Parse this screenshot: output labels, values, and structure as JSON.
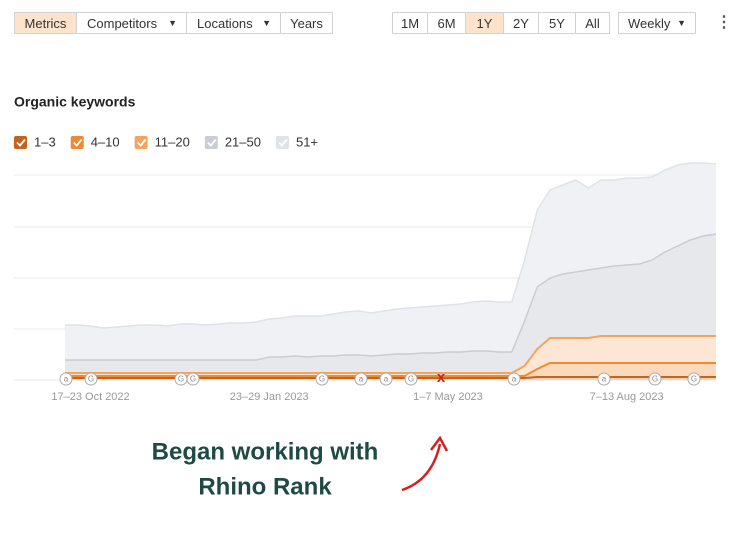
{
  "toolbar": {
    "tabs": [
      "Metrics",
      "Competitors",
      "Locations",
      "Years"
    ],
    "active_tab": 0,
    "ranges": [
      "1M",
      "6M",
      "1Y",
      "2Y",
      "5Y",
      "All"
    ],
    "active_range": 2,
    "interval": "Weekly"
  },
  "chart_data": {
    "type": "stacked-area",
    "title": "Organic keywords",
    "categories": [
      null,
      null,
      "17–23 Oct 2022",
      null,
      null,
      null,
      null,
      null,
      null,
      null,
      null,
      null,
      null,
      null,
      null,
      null,
      "23–29 Jan 2023",
      null,
      null,
      null,
      null,
      null,
      null,
      null,
      null,
      null,
      null,
      null,
      null,
      null,
      "1–7 May 2023",
      null,
      null,
      null,
      null,
      null,
      null,
      null,
      null,
      null,
      null,
      null,
      null,
      null,
      "7–13 Aug 2023",
      null,
      null,
      null,
      null,
      null,
      null,
      null
    ],
    "ylim": [
      0,
      250
    ],
    "series": [
      {
        "name": "1–3",
        "color": "#c5641f",
        "values": [
          2,
          2,
          2,
          2,
          2,
          2,
          2,
          2,
          2,
          2,
          2,
          2,
          2,
          2,
          2,
          2,
          2,
          2,
          2,
          2,
          2,
          2,
          2,
          2,
          2,
          2,
          2,
          2,
          2,
          2,
          2,
          2,
          2,
          2,
          2,
          2,
          2,
          3,
          3,
          3,
          3,
          3,
          3,
          3,
          3,
          3,
          3,
          3,
          3,
          3,
          3,
          3
        ]
      },
      {
        "name": "4–10",
        "color": "#f08a2c",
        "values": [
          2,
          2,
          2,
          2,
          2,
          2,
          2,
          2,
          2,
          2,
          2,
          2,
          2,
          2,
          2,
          2,
          2,
          2,
          2,
          2,
          2,
          2,
          2,
          2,
          2,
          2,
          2,
          2,
          2,
          2,
          2,
          2,
          2,
          2,
          2,
          2,
          2,
          8,
          14,
          14,
          14,
          14,
          14,
          14,
          14,
          14,
          14,
          14,
          14,
          14,
          14,
          14
        ]
      },
      {
        "name": "11–20",
        "color": "#f6a35c",
        "values": [
          3,
          3,
          3,
          3,
          3,
          3,
          3,
          3,
          3,
          3,
          3,
          3,
          3,
          3,
          3,
          3,
          3,
          3,
          3,
          3,
          3,
          3,
          3,
          3,
          3,
          3,
          3,
          3,
          3,
          3,
          3,
          3,
          3,
          3,
          3,
          3,
          10,
          20,
          25,
          25,
          25,
          25,
          27,
          27,
          27,
          27,
          27,
          27,
          27,
          27,
          27,
          27
        ]
      },
      {
        "name": "21–50",
        "color": "#c9cdd4",
        "values": [
          13,
          13,
          13,
          13,
          13,
          13,
          13,
          13,
          13,
          13,
          13,
          13,
          13,
          13,
          13,
          13,
          16,
          16,
          17,
          16,
          17,
          17,
          18,
          18,
          17,
          18,
          19,
          19,
          20,
          20,
          21,
          21,
          22,
          22,
          21,
          21,
          45,
          62,
          60,
          64,
          66,
          68,
          68,
          70,
          71,
          72,
          76,
          84,
          90,
          96,
          100,
          102
        ]
      },
      {
        "name": "51+",
        "color": "#dfe2e7",
        "values": [
          35,
          35,
          34,
          32,
          33,
          34,
          35,
          35,
          34,
          36,
          36,
          35,
          36,
          37,
          37,
          38,
          38,
          39,
          40,
          41,
          40,
          42,
          43,
          44,
          43,
          44,
          45,
          46,
          46,
          47,
          47,
          48,
          49,
          50,
          50,
          50,
          61,
          77,
          88,
          89,
          92,
          82,
          88,
          86,
          87,
          86,
          83,
          82,
          81,
          77,
          73,
          70
        ]
      }
    ],
    "markers": [
      "a",
      "G",
      "G",
      "G",
      "G",
      "a",
      "a",
      "G",
      "a",
      "a",
      "G",
      "G"
    ]
  },
  "caption": [
    "Began working with",
    "Rhino Rank"
  ]
}
